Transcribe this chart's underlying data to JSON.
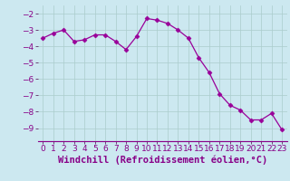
{
  "x": [
    0,
    1,
    2,
    3,
    4,
    5,
    6,
    7,
    8,
    9,
    10,
    11,
    12,
    13,
    14,
    15,
    16,
    17,
    18,
    19,
    20,
    21,
    22,
    23
  ],
  "y": [
    -3.5,
    -3.2,
    -3.0,
    -3.7,
    -3.6,
    -3.3,
    -3.3,
    -3.7,
    -4.2,
    -3.4,
    -2.3,
    -2.4,
    -2.6,
    -3.0,
    -3.5,
    -4.7,
    -5.6,
    -6.9,
    -7.6,
    -7.9,
    -8.5,
    -8.5,
    -8.1,
    -9.1
  ],
  "line_color": "#990099",
  "marker": "D",
  "marker_size": 2.5,
  "bg_color": "#cce8f0",
  "grid_color": "#aacccc",
  "xlabel": "Windchill (Refroidissement éolien,°C)",
  "xlabel_fontsize": 7.5,
  "tick_fontsize": 6.5,
  "ylim": [
    -9.8,
    -1.5
  ],
  "xlim": [
    -0.5,
    23.5
  ],
  "yticks": [
    -9,
    -8,
    -7,
    -6,
    -5,
    -4,
    -3,
    -2
  ],
  "xticks": [
    0,
    1,
    2,
    3,
    4,
    5,
    6,
    7,
    8,
    9,
    10,
    11,
    12,
    13,
    14,
    15,
    16,
    17,
    18,
    19,
    20,
    21,
    22,
    23
  ]
}
